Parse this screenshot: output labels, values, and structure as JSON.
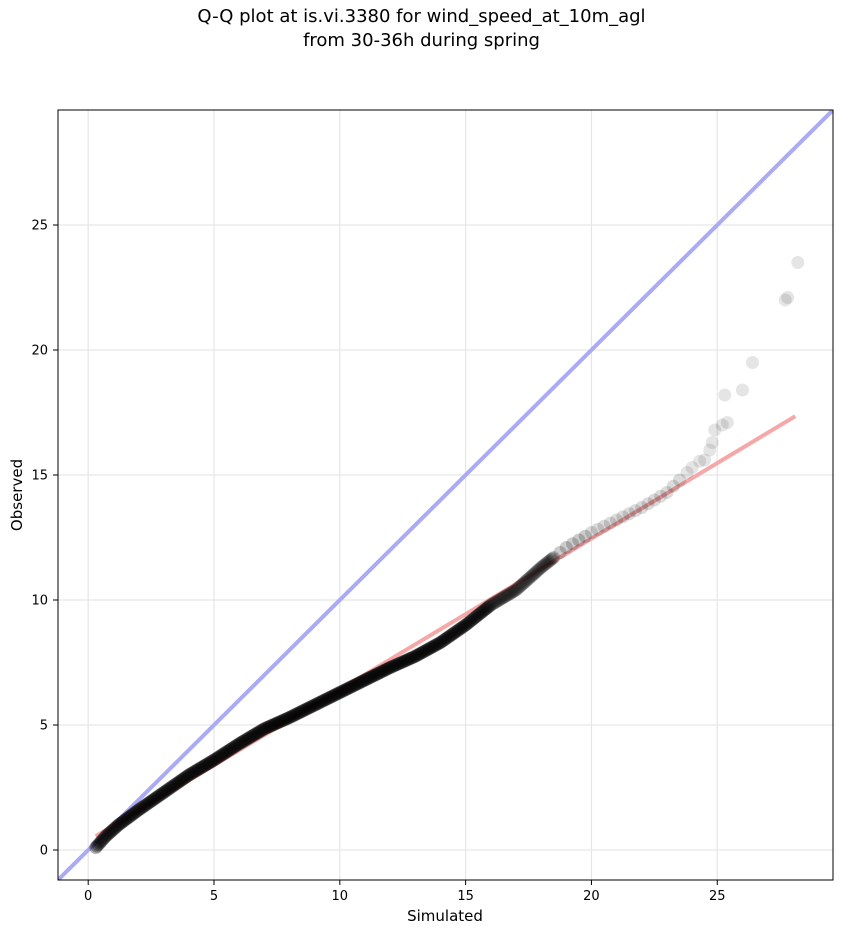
{
  "chart_data": {
    "type": "scatter",
    "title": [
      "Q-Q plot at is.vi.3380 for wind_speed_at_10m_agl",
      "from 30-36h during spring"
    ],
    "xlabel": "Simulated",
    "ylabel": "Observed",
    "xlim": [
      -1.2,
      29.6
    ],
    "ylim": [
      -1.2,
      29.6
    ],
    "xticks": [
      0,
      5,
      10,
      15,
      20,
      25
    ],
    "yticks": [
      0,
      5,
      10,
      15,
      20,
      25
    ],
    "grid": true,
    "point_color": "#000000",
    "one_to_one_line": {
      "color": "#aaaaf5",
      "from": [
        -1.2,
        -1.2
      ],
      "to": [
        29.6,
        29.6
      ]
    },
    "fit_line": {
      "color": "#f5a8a8",
      "from": [
        0.3,
        0.55
      ],
      "to": [
        28.1,
        17.35
      ]
    },
    "curve_anchors": [
      [
        0.3,
        0.1
      ],
      [
        0.7,
        0.55
      ],
      [
        1.2,
        1.0
      ],
      [
        2.0,
        1.6
      ],
      [
        3.0,
        2.3
      ],
      [
        4.0,
        3.0
      ],
      [
        5.0,
        3.6
      ],
      [
        6.0,
        4.25
      ],
      [
        7.0,
        4.85
      ],
      [
        8.0,
        5.3
      ],
      [
        9.0,
        5.8
      ],
      [
        10.0,
        6.3
      ],
      [
        11.0,
        6.8
      ],
      [
        12.0,
        7.3
      ],
      [
        13.0,
        7.75
      ],
      [
        14.0,
        8.3
      ],
      [
        15.0,
        9.0
      ],
      [
        16.0,
        9.8
      ],
      [
        17.0,
        10.4
      ],
      [
        18.0,
        11.3
      ],
      [
        19.0,
        12.1
      ],
      [
        20.0,
        12.7
      ],
      [
        21.0,
        13.2
      ],
      [
        22.0,
        13.7
      ],
      [
        23.0,
        14.3
      ],
      [
        23.5,
        14.8
      ]
    ],
    "tail_points": [
      [
        23.8,
        15.1
      ],
      [
        24.0,
        15.3
      ],
      [
        24.3,
        15.55
      ],
      [
        24.5,
        15.6
      ],
      [
        24.7,
        16.0
      ],
      [
        24.8,
        16.3
      ],
      [
        24.9,
        16.8
      ],
      [
        25.2,
        17.0
      ],
      [
        25.4,
        17.1
      ],
      [
        25.3,
        18.2
      ],
      [
        26.0,
        18.4
      ],
      [
        26.4,
        19.5
      ],
      [
        27.7,
        22.0
      ],
      [
        27.8,
        22.1
      ],
      [
        28.2,
        23.5
      ]
    ]
  }
}
